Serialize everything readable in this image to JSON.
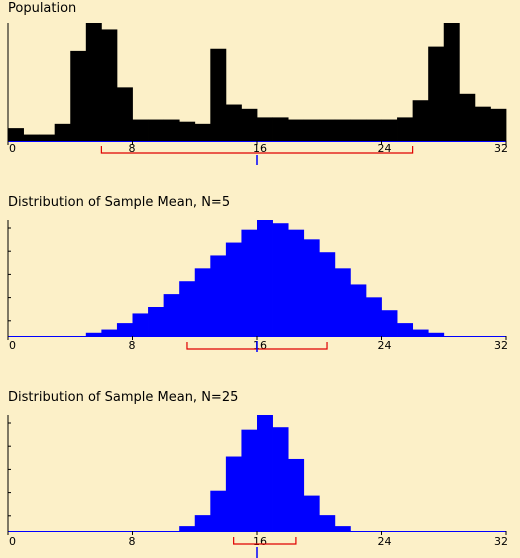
{
  "panels": [
    {
      "id": "population",
      "title": "Population",
      "color": "#000000",
      "ticks": [
        "0",
        "8",
        "16",
        "24",
        "32"
      ],
      "x_min": 0,
      "x_max": 32,
      "mean": 16,
      "sd_bracket": [
        6,
        26
      ],
      "values": [
        6,
        3,
        3,
        8,
        42,
        55,
        52,
        25,
        10,
        10,
        10,
        9,
        8,
        43,
        17,
        15,
        11,
        11,
        10,
        10,
        10,
        10,
        10,
        10,
        10,
        11,
        19,
        44,
        55,
        22,
        16,
        15
      ]
    },
    {
      "id": "mean-n5",
      "title": "Distribution of Sample Mean, N=5",
      "color": "#0000ff",
      "ticks": [
        "0",
        "8",
        "16",
        "24",
        "32"
      ],
      "x_min": 0,
      "x_max": 32,
      "mean": 16,
      "sd_bracket": [
        11.5,
        20.5
      ],
      "values": [
        0,
        0,
        0,
        0,
        0,
        1,
        2,
        4,
        7,
        9,
        13,
        17,
        21,
        25,
        29,
        33,
        36,
        35,
        33,
        30,
        26,
        21,
        16,
        12,
        8,
        4,
        2,
        1,
        0,
        0,
        0,
        0
      ]
    },
    {
      "id": "mean-n25",
      "title": "Distribution of Sample Mean, N=25",
      "color": "#0000ff",
      "ticks": [
        "0",
        "8",
        "16",
        "24",
        "32"
      ],
      "x_min": 0,
      "x_max": 32,
      "mean": 16,
      "sd_bracket": [
        14.5,
        18.5
      ],
      "values": [
        0,
        0,
        0,
        0,
        0,
        0,
        0,
        0,
        0,
        0,
        0,
        4,
        13,
        33,
        61,
        83,
        95,
        85,
        59,
        29,
        13,
        4,
        0,
        0,
        0,
        0,
        0,
        0,
        0,
        0,
        0,
        0
      ]
    }
  ],
  "colors": {
    "background": "#fcf0c8",
    "axis": "#0000ff",
    "bracket": "#e00000",
    "mean_marker": "#0000ff"
  }
}
